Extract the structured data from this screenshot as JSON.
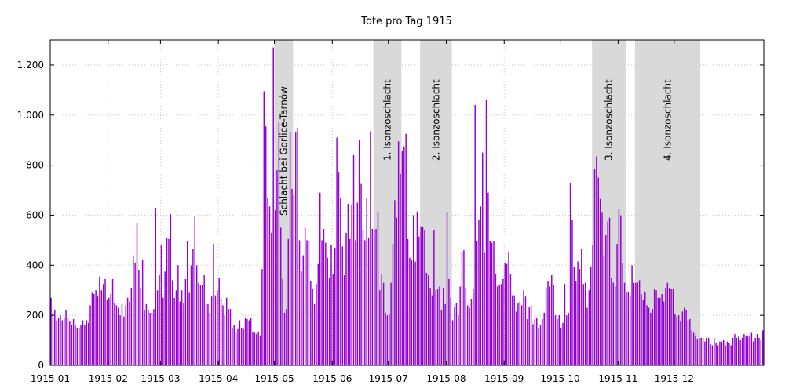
{
  "chart_data": {
    "type": "bar",
    "title": "Tote pro Tag 1915",
    "xlabel": "",
    "ylabel": "",
    "ylim": [
      0,
      1300
    ],
    "yticks": [
      0,
      200,
      400,
      600,
      800,
      1000,
      1200
    ],
    "ytick_labels": [
      "0",
      "200",
      "400",
      "600",
      "800",
      "1.000",
      "1.200"
    ],
    "xticks": [
      "1915-01-01",
      "1915-02-01",
      "1915-03-01",
      "1915-04-01",
      "1915-05-01",
      "1915-06-01",
      "1915-07-01",
      "1915-08-01",
      "1915-09-01",
      "1915-10-01",
      "1915-11-01",
      "1915-12-01"
    ],
    "xtick_labels": [
      "1915-01",
      "1915-02",
      "1915-03",
      "1915-04",
      "1915-05",
      "1915-06",
      "1915-07",
      "1915-08",
      "1915-09",
      "1915-10",
      "1915-11",
      "1915-12"
    ],
    "grid": true,
    "bar_color": "#9400d3",
    "shade_color": "#d9d9d9",
    "periods": [
      {
        "label": "Schlacht bei Gorlice-Tarnów",
        "start": "1915-05-01",
        "end": "1915-05-10"
      },
      {
        "label": "1. Isonzoschlacht",
        "start": "1915-06-23",
        "end": "1915-07-07"
      },
      {
        "label": "2. Isonzoschlacht",
        "start": "1915-07-18",
        "end": "1915-08-03"
      },
      {
        "label": "3. Isonzoschlacht",
        "start": "1915-10-18",
        "end": "1915-11-04"
      },
      {
        "label": "4. Isonzoschlacht",
        "start": "1915-11-10",
        "end": "1915-12-14"
      }
    ],
    "start_date": "1915-01-01",
    "series": [
      {
        "values": [
          270,
          210,
          220,
          180,
          190,
          200,
          180,
          190,
          220,
          190,
          175,
          160,
          185,
          160,
          150,
          150,
          160,
          180,
          160,
          180,
          170,
          240,
          290,
          285,
          300,
          275,
          355,
          300,
          325,
          345,
          260,
          270,
          285,
          345,
          250,
          240,
          230,
          200,
          245,
          195,
          240,
          270,
          255,
          310,
          440,
          410,
          570,
          380,
          310,
          420,
          220,
          245,
          220,
          210,
          210,
          225,
          630,
          300,
          360,
          480,
          270,
          375,
          510,
          505,
          605,
          340,
          270,
          300,
          400,
          255,
          300,
          250,
          345,
          495,
          290,
          400,
          465,
          595,
          400,
          330,
          320,
          320,
          360,
          245,
          245,
          210,
          275,
          485,
          280,
          300,
          350,
          265,
          240,
          200,
          270,
          225,
          225,
          150,
          160,
          130,
          145,
          180,
          150,
          145,
          190,
          185,
          180,
          190,
          135,
          130,
          125,
          135,
          120,
          385,
          1095,
          955,
          670,
          635,
          530,
          1270,
          620,
          780,
          970,
          550,
          345,
          210,
          225,
          505,
          930,
          705,
          680,
          930,
          950,
          500,
          375,
          440,
          550,
          500,
          495,
          335,
          305,
          245,
          325,
          405,
          690,
          500,
          545,
          490,
          430,
          350,
          480,
          365,
          470,
          910,
          770,
          670,
          475,
          360,
          530,
          645,
          505,
          640,
          840,
          500,
          650,
          900,
          725,
          540,
          500,
          670,
          510,
          935,
          545,
          540,
          545,
          615,
          300,
          365,
          330,
          210,
          200,
          205,
          330,
          485,
          660,
          590,
          895,
          765,
          855,
          875,
          925,
          505,
          430,
          420,
          600,
          415,
          615,
          515,
          555,
          555,
          540,
          370,
          360,
          310,
          280,
          540,
          300,
          305,
          315,
          220,
          310,
          245,
          610,
          345,
          270,
          180,
          235,
          250,
          200,
          315,
          455,
          460,
          310,
          240,
          230,
          265,
          305,
          1040,
          495,
          580,
          635,
          850,
          450,
          1060,
          690,
          495,
          490,
          495,
          365,
          315,
          320,
          325,
          345,
          410,
          405,
          455,
          365,
          280,
          280,
          215,
          250,
          255,
          240,
          300,
          275,
          185,
          235,
          240,
          165,
          185,
          190,
          150,
          160,
          185,
          210,
          310,
          335,
          315,
          360,
          320,
          200,
          185,
          200,
          150,
          170,
          325,
          200,
          210,
          730,
          580,
          395,
          335,
          415,
          385,
          465,
          325,
          330,
          230,
          300,
          395,
          480,
          785,
          835,
          750,
          665,
          610,
          440,
          520,
          575,
          590,
          350,
          330,
          315,
          485,
          625,
          600,
          410,
          330,
          290,
          295,
          280,
          400,
          330,
          330,
          330,
          340,
          285,
          260,
          295,
          240,
          230,
          210,
          225,
          305,
          300,
          270,
          270,
          285,
          255,
          310,
          330,
          310,
          305,
          305,
          205,
          195,
          200,
          175,
          215,
          230,
          220,
          180,
          185,
          140,
          130,
          120,
          105,
          110,
          110,
          110,
          95,
          110,
          110,
          85,
          80,
          110,
          90,
          80,
          95,
          95,
          100,
          80,
          95,
          90,
          80,
          110,
          125,
          110,
          115,
          100,
          110,
          125,
          120,
          115,
          120,
          130,
          95,
          110,
          125,
          110,
          100,
          140
        ]
      }
    ]
  }
}
